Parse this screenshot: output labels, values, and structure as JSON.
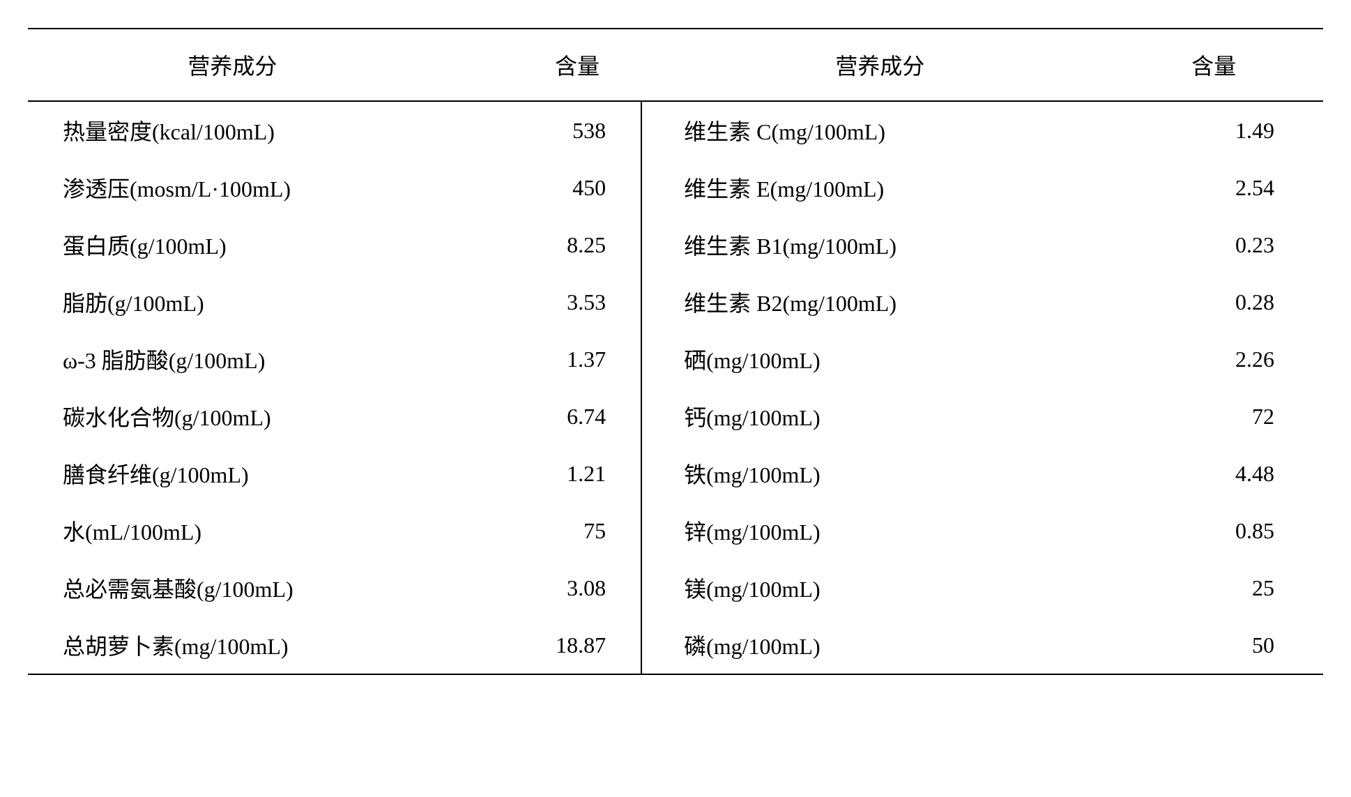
{
  "table": {
    "type": "table",
    "background_color": "#ffffff",
    "text_color": "#000000",
    "border_color": "#000000",
    "font_family": "SimSun",
    "font_size_pt": 24,
    "border_width": 2,
    "columns": [
      {
        "key": "label_1",
        "header": "营养成分",
        "align": "left"
      },
      {
        "key": "value_1",
        "header": "含量",
        "align": "right"
      },
      {
        "key": "label_2",
        "header": "营养成分",
        "align": "left"
      },
      {
        "key": "value_2",
        "header": "含量",
        "align": "right"
      }
    ],
    "rows": [
      {
        "label_1": "热量密度(kcal/100mL)",
        "value_1": "538",
        "label_2": "维生素 C(mg/100mL)",
        "value_2": "1.49"
      },
      {
        "label_1": "渗透压(mosm/L·100mL)",
        "value_1": "450",
        "label_2": "维生素 E(mg/100mL)",
        "value_2": "2.54"
      },
      {
        "label_1": "蛋白质(g/100mL)",
        "value_1": "8.25",
        "label_2": "维生素 B1(mg/100mL)",
        "value_2": "0.23"
      },
      {
        "label_1": "脂肪(g/100mL)",
        "value_1": "3.53",
        "label_2": "维生素 B2(mg/100mL)",
        "value_2": "0.28"
      },
      {
        "label_1": "ω-3 脂肪酸(g/100mL)",
        "value_1": "1.37",
        "label_2": "硒(mg/100mL)",
        "value_2": "2.26"
      },
      {
        "label_1": "碳水化合物(g/100mL)",
        "value_1": "6.74",
        "label_2": "钙(mg/100mL)",
        "value_2": "72"
      },
      {
        "label_1": "膳食纤维(g/100mL)",
        "value_1": "1.21",
        "label_2": "铁(mg/100mL)",
        "value_2": "4.48"
      },
      {
        "label_1": "水(mL/100mL)",
        "value_1": "75",
        "label_2": "锌(mg/100mL)",
        "value_2": "0.85"
      },
      {
        "label_1": "总必需氨基酸(g/100mL)",
        "value_1": "3.08",
        "label_2": "镁(mg/100mL)",
        "value_2": "25"
      },
      {
        "label_1": "总胡萝卜素(mg/100mL)",
        "value_1": "18.87",
        "label_2": "磷(mg/100mL)",
        "value_2": "50"
      }
    ]
  }
}
